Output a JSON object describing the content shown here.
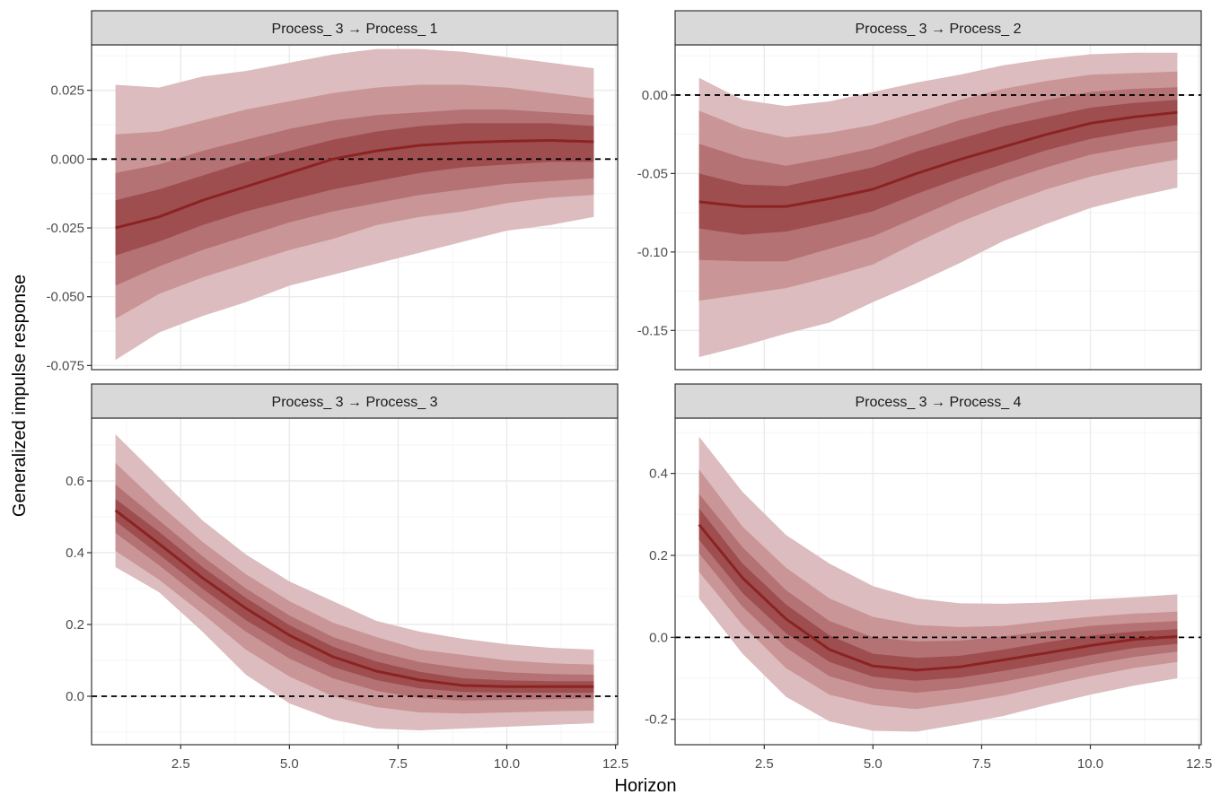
{
  "figure": {
    "x_axis_title": "Horizon",
    "y_axis_title": "Generalized impulse response"
  },
  "colors": {
    "band_outer": "#dcbcbe",
    "band_2": "#c99597",
    "band_3": "#b47274",
    "band_inner": "#9f4e50",
    "median_line": "#8b2323",
    "strip_fill": "#d9d9d9",
    "panel_border": "#333333",
    "grid_major": "#ebebeb",
    "grid_minor": "#f5f5f5",
    "zero_line": "#000000"
  },
  "chart_data": [
    {
      "type": "area",
      "title": "Process_ 3 → Process_ 1",
      "x": [
        1,
        2,
        3,
        4,
        5,
        6,
        7,
        8,
        9,
        10,
        11,
        12
      ],
      "xlim": [
        0.45,
        12.55
      ],
      "ylim": [
        -0.0765,
        0.0415
      ],
      "x_ticks": [
        2.5,
        5.0,
        7.5,
        10.0,
        12.5
      ],
      "x_tick_labels": [
        "2.5",
        "5.0",
        "7.5",
        "10.0",
        "12.5"
      ],
      "y_ticks": [
        -0.075,
        -0.05,
        -0.025,
        0.0,
        0.025
      ],
      "y_tick_labels": [
        "-0.075",
        "-0.050",
        "-0.025",
        "0.000",
        "0.025"
      ],
      "reference_line": 0,
      "median": [
        -0.025,
        -0.021,
        -0.015,
        -0.01,
        -0.005,
        0.0,
        0.003,
        0.005,
        0.006,
        0.0065,
        0.0068,
        0.0063
      ],
      "bands": [
        {
          "level": "outer",
          "lower": [
            -0.073,
            -0.063,
            -0.057,
            -0.052,
            -0.046,
            -0.042,
            -0.038,
            -0.034,
            -0.03,
            -0.026,
            -0.024,
            -0.021
          ],
          "upper": [
            0.027,
            0.026,
            0.03,
            0.032,
            0.035,
            0.038,
            0.04,
            0.04,
            0.039,
            0.037,
            0.035,
            0.033
          ]
        },
        {
          "level": "80",
          "lower": [
            -0.058,
            -0.049,
            -0.043,
            -0.038,
            -0.033,
            -0.029,
            -0.024,
            -0.021,
            -0.019,
            -0.016,
            -0.014,
            -0.013
          ],
          "upper": [
            0.009,
            0.01,
            0.014,
            0.018,
            0.021,
            0.024,
            0.026,
            0.027,
            0.027,
            0.026,
            0.024,
            0.022
          ]
        },
        {
          "level": "60",
          "lower": [
            -0.046,
            -0.039,
            -0.033,
            -0.028,
            -0.023,
            -0.019,
            -0.016,
            -0.013,
            -0.011,
            -0.009,
            -0.008,
            -0.007
          ],
          "upper": [
            -0.005,
            -0.002,
            0.003,
            0.007,
            0.011,
            0.014,
            0.016,
            0.017,
            0.018,
            0.018,
            0.017,
            0.016
          ]
        },
        {
          "level": "40",
          "lower": [
            -0.035,
            -0.03,
            -0.024,
            -0.019,
            -0.015,
            -0.011,
            -0.008,
            -0.005,
            -0.003,
            -0.002,
            -0.001,
            -0.001
          ],
          "upper": [
            -0.015,
            -0.011,
            -0.006,
            -0.001,
            0.003,
            0.007,
            0.01,
            0.012,
            0.013,
            0.013,
            0.013,
            0.012
          ]
        }
      ]
    },
    {
      "type": "area",
      "title": "Process_ 3 → Process_ 2",
      "x": [
        1,
        2,
        3,
        4,
        5,
        6,
        7,
        8,
        9,
        10,
        11,
        12
      ],
      "xlim": [
        0.45,
        12.55
      ],
      "ylim": [
        -0.175,
        0.032
      ],
      "x_ticks": [
        2.5,
        5.0,
        7.5,
        10.0,
        12.5
      ],
      "x_tick_labels": [
        "2.5",
        "5.0",
        "7.5",
        "10.0",
        "12.5"
      ],
      "y_ticks": [
        -0.15,
        -0.1,
        -0.05,
        0.0
      ],
      "y_tick_labels": [
        "-0.15",
        "-0.10",
        "-0.05",
        "0.00"
      ],
      "reference_line": 0,
      "median": [
        -0.068,
        -0.071,
        -0.071,
        -0.066,
        -0.06,
        -0.05,
        -0.041,
        -0.033,
        -0.025,
        -0.018,
        -0.014,
        -0.011
      ],
      "bands": [
        {
          "level": "outer",
          "lower": [
            -0.167,
            -0.16,
            -0.152,
            -0.145,
            -0.132,
            -0.12,
            -0.107,
            -0.093,
            -0.082,
            -0.072,
            -0.065,
            -0.059
          ],
          "upper": [
            0.011,
            -0.003,
            -0.007,
            -0.004,
            0.002,
            0.008,
            0.013,
            0.019,
            0.023,
            0.026,
            0.027,
            0.027
          ]
        },
        {
          "level": "80",
          "lower": [
            -0.131,
            -0.127,
            -0.123,
            -0.116,
            -0.108,
            -0.094,
            -0.081,
            -0.07,
            -0.06,
            -0.052,
            -0.046,
            -0.041
          ],
          "upper": [
            -0.01,
            -0.021,
            -0.027,
            -0.024,
            -0.019,
            -0.011,
            -0.003,
            0.004,
            0.009,
            0.013,
            0.014,
            0.015
          ]
        },
        {
          "level": "60",
          "lower": [
            -0.105,
            -0.106,
            -0.106,
            -0.098,
            -0.09,
            -0.078,
            -0.066,
            -0.055,
            -0.046,
            -0.038,
            -0.033,
            -0.029
          ],
          "upper": [
            -0.031,
            -0.04,
            -0.045,
            -0.04,
            -0.034,
            -0.025,
            -0.016,
            -0.009,
            -0.003,
            0.002,
            0.004,
            0.005
          ]
        },
        {
          "level": "40",
          "lower": [
            -0.085,
            -0.089,
            -0.087,
            -0.081,
            -0.074,
            -0.063,
            -0.053,
            -0.044,
            -0.035,
            -0.028,
            -0.023,
            -0.019
          ],
          "upper": [
            -0.05,
            -0.057,
            -0.058,
            -0.052,
            -0.046,
            -0.036,
            -0.028,
            -0.02,
            -0.014,
            -0.008,
            -0.005,
            -0.003
          ]
        }
      ]
    },
    {
      "type": "area",
      "title": "Process_ 3 → Process_ 3",
      "x": [
        1,
        2,
        3,
        4,
        5,
        6,
        7,
        8,
        9,
        10,
        11,
        12
      ],
      "xlim": [
        0.45,
        12.55
      ],
      "ylim": [
        -0.135,
        0.775
      ],
      "x_ticks": [
        2.5,
        5.0,
        7.5,
        10.0,
        12.5
      ],
      "x_tick_labels": [
        "2.5",
        "5.0",
        "7.5",
        "10.0",
        "12.5"
      ],
      "y_ticks": [
        0.0,
        0.2,
        0.4,
        0.6
      ],
      "y_tick_labels": [
        "0.0",
        "0.2",
        "0.4",
        "0.6"
      ],
      "reference_line": 0,
      "median": [
        0.518,
        0.425,
        0.33,
        0.245,
        0.17,
        0.11,
        0.07,
        0.045,
        0.03,
        0.027,
        0.027,
        0.027
      ],
      "bands": [
        {
          "level": "outer",
          "lower": [
            0.36,
            0.29,
            0.18,
            0.06,
            -0.02,
            -0.065,
            -0.09,
            -0.095,
            -0.09,
            -0.085,
            -0.08,
            -0.075
          ],
          "upper": [
            0.73,
            0.61,
            0.49,
            0.395,
            0.32,
            0.265,
            0.21,
            0.18,
            0.16,
            0.145,
            0.135,
            0.13
          ]
        },
        {
          "level": "80",
          "lower": [
            0.405,
            0.325,
            0.23,
            0.13,
            0.055,
            0.0,
            -0.03,
            -0.045,
            -0.048,
            -0.045,
            -0.042,
            -0.04
          ],
          "upper": [
            0.65,
            0.535,
            0.43,
            0.34,
            0.265,
            0.205,
            0.165,
            0.13,
            0.115,
            0.1,
            0.092,
            0.088
          ]
        },
        {
          "level": "60",
          "lower": [
            0.455,
            0.365,
            0.27,
            0.18,
            0.105,
            0.05,
            0.015,
            -0.005,
            -0.012,
            -0.01,
            -0.008,
            -0.006
          ],
          "upper": [
            0.59,
            0.49,
            0.39,
            0.3,
            0.225,
            0.165,
            0.125,
            0.095,
            0.078,
            0.067,
            0.062,
            0.06
          ]
        },
        {
          "level": "40",
          "lower": [
            0.488,
            0.395,
            0.3,
            0.212,
            0.14,
            0.082,
            0.045,
            0.022,
            0.012,
            0.01,
            0.01,
            0.01
          ],
          "upper": [
            0.55,
            0.458,
            0.36,
            0.274,
            0.198,
            0.138,
            0.097,
            0.068,
            0.05,
            0.044,
            0.042,
            0.042
          ]
        }
      ]
    },
    {
      "type": "area",
      "title": "Process_ 3 → Process_ 4",
      "x": [
        1,
        2,
        3,
        4,
        5,
        6,
        7,
        8,
        9,
        10,
        11,
        12
      ],
      "xlim": [
        0.45,
        12.55
      ],
      "ylim": [
        -0.262,
        0.535
      ],
      "x_ticks": [
        2.5,
        5.0,
        7.5,
        10.0,
        12.5
      ],
      "x_tick_labels": [
        "2.5",
        "5.0",
        "7.5",
        "10.0",
        "12.5"
      ],
      "y_ticks": [
        -0.2,
        0.0,
        0.2,
        0.4
      ],
      "y_tick_labels": [
        "-0.2",
        "0.0",
        "0.2",
        "0.4"
      ],
      "reference_line": 0,
      "median": [
        0.275,
        0.145,
        0.045,
        -0.03,
        -0.07,
        -0.08,
        -0.072,
        -0.055,
        -0.038,
        -0.02,
        -0.005,
        0.002
      ],
      "bands": [
        {
          "level": "outer",
          "lower": [
            0.095,
            -0.04,
            -0.145,
            -0.205,
            -0.228,
            -0.23,
            -0.212,
            -0.192,
            -0.165,
            -0.14,
            -0.118,
            -0.1
          ],
          "upper": [
            0.49,
            0.355,
            0.25,
            0.18,
            0.125,
            0.095,
            0.083,
            0.082,
            0.085,
            0.092,
            0.098,
            0.105
          ]
        },
        {
          "level": "80",
          "lower": [
            0.16,
            0.03,
            -0.075,
            -0.14,
            -0.165,
            -0.175,
            -0.16,
            -0.142,
            -0.118,
            -0.095,
            -0.075,
            -0.06
          ],
          "upper": [
            0.41,
            0.27,
            0.17,
            0.095,
            0.05,
            0.03,
            0.025,
            0.028,
            0.04,
            0.05,
            0.058,
            0.063
          ]
        },
        {
          "level": "60",
          "lower": [
            0.205,
            0.075,
            -0.025,
            -0.095,
            -0.125,
            -0.135,
            -0.125,
            -0.108,
            -0.088,
            -0.066,
            -0.048,
            -0.035
          ],
          "upper": [
            0.35,
            0.22,
            0.115,
            0.04,
            0.0,
            -0.01,
            -0.008,
            0.002,
            0.015,
            0.028,
            0.035,
            0.04
          ]
        },
        {
          "level": "40",
          "lower": [
            0.238,
            0.108,
            0.01,
            -0.06,
            -0.096,
            -0.106,
            -0.098,
            -0.082,
            -0.063,
            -0.044,
            -0.026,
            -0.016
          ],
          "upper": [
            0.315,
            0.18,
            0.08,
            0.005,
            -0.04,
            -0.05,
            -0.045,
            -0.03,
            -0.012,
            0.004,
            0.014,
            0.02
          ]
        }
      ]
    }
  ]
}
